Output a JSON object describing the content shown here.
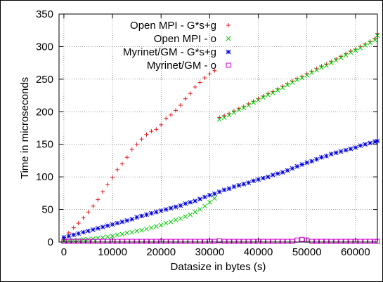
{
  "chart_data": {
    "type": "scatter",
    "title": "",
    "xlabel": "Datasize in bytes (s)",
    "ylabel": "Time in microseconds",
    "xlim": [
      -1000,
      64500
    ],
    "ylim": [
      0,
      350
    ],
    "x_ticks": [
      0,
      10000,
      20000,
      30000,
      40000,
      50000,
      60000
    ],
    "y_ticks": [
      0,
      50,
      100,
      150,
      200,
      250,
      300,
      350
    ],
    "grid": true,
    "legend_position": "top-left",
    "series": [
      {
        "name": "Open MPI - G*s+g",
        "color": "#e31a1c",
        "marker": "plus",
        "points": [
          [
            0,
            3
          ],
          [
            1000,
            14
          ],
          [
            2000,
            22
          ],
          [
            3000,
            29
          ],
          [
            4000,
            37
          ],
          [
            5000,
            46
          ],
          [
            6000,
            55
          ],
          [
            7000,
            65
          ],
          [
            8000,
            77
          ],
          [
            9000,
            88
          ],
          [
            10000,
            99
          ],
          [
            11000,
            111
          ],
          [
            12000,
            120
          ],
          [
            13000,
            130
          ],
          [
            14000,
            142
          ],
          [
            15000,
            150
          ],
          [
            16000,
            158
          ],
          [
            17000,
            165
          ],
          [
            18000,
            170
          ],
          [
            19000,
            173
          ],
          [
            20000,
            180
          ],
          [
            21000,
            190
          ],
          [
            22000,
            195
          ],
          [
            23000,
            202
          ],
          [
            24000,
            210
          ],
          [
            25000,
            220
          ],
          [
            26000,
            228
          ],
          [
            27000,
            238
          ],
          [
            28000,
            245
          ],
          [
            29000,
            252
          ],
          [
            30000,
            258
          ],
          [
            31000,
            263
          ],
          [
            32000,
            191
          ],
          [
            33000,
            194
          ],
          [
            34000,
            197
          ],
          [
            35000,
            201
          ],
          [
            36000,
            205
          ],
          [
            37000,
            208
          ],
          [
            38000,
            212
          ],
          [
            39000,
            216
          ],
          [
            40000,
            220
          ],
          [
            41000,
            224
          ],
          [
            42000,
            228
          ],
          [
            43000,
            231
          ],
          [
            44000,
            235
          ],
          [
            45000,
            239
          ],
          [
            46000,
            243
          ],
          [
            47000,
            247
          ],
          [
            48000,
            251
          ],
          [
            49000,
            254
          ],
          [
            50000,
            258
          ],
          [
            51000,
            262
          ],
          [
            52000,
            266
          ],
          [
            53000,
            270
          ],
          [
            54000,
            273
          ],
          [
            55000,
            277
          ],
          [
            56000,
            281
          ],
          [
            57000,
            285
          ],
          [
            58000,
            289
          ],
          [
            59000,
            293
          ],
          [
            60000,
            296
          ],
          [
            61000,
            300
          ],
          [
            62000,
            304
          ],
          [
            63000,
            308
          ],
          [
            64000,
            312
          ],
          [
            64500,
            320
          ]
        ]
      },
      {
        "name": "Open MPI - o",
        "color": "#00cc00",
        "marker": "cross",
        "points": [
          [
            0,
            2
          ],
          [
            1000,
            2
          ],
          [
            2000,
            3
          ],
          [
            3000,
            3
          ],
          [
            4000,
            4
          ],
          [
            5000,
            4
          ],
          [
            6000,
            5
          ],
          [
            7000,
            6
          ],
          [
            8000,
            7
          ],
          [
            9000,
            8
          ],
          [
            10000,
            9
          ],
          [
            11000,
            11
          ],
          [
            12000,
            12
          ],
          [
            13000,
            14
          ],
          [
            14000,
            15
          ],
          [
            15000,
            17
          ],
          [
            16000,
            18
          ],
          [
            17000,
            20
          ],
          [
            18000,
            22
          ],
          [
            19000,
            24
          ],
          [
            20000,
            26
          ],
          [
            21000,
            29
          ],
          [
            22000,
            31
          ],
          [
            23000,
            34
          ],
          [
            24000,
            36
          ],
          [
            25000,
            39
          ],
          [
            26000,
            42
          ],
          [
            27000,
            46
          ],
          [
            28000,
            50
          ],
          [
            29000,
            55
          ],
          [
            30000,
            61
          ],
          [
            31000,
            67
          ],
          [
            32000,
            188
          ],
          [
            33000,
            191
          ],
          [
            34000,
            195
          ],
          [
            35000,
            199
          ],
          [
            36000,
            203
          ],
          [
            37000,
            206
          ],
          [
            38000,
            210
          ],
          [
            39000,
            214
          ],
          [
            40000,
            218
          ],
          [
            41000,
            222
          ],
          [
            42000,
            226
          ],
          [
            43000,
            229
          ],
          [
            44000,
            233
          ],
          [
            45000,
            237
          ],
          [
            46000,
            241
          ],
          [
            47000,
            245
          ],
          [
            48000,
            249
          ],
          [
            49000,
            252
          ],
          [
            50000,
            256
          ],
          [
            51000,
            260
          ],
          [
            52000,
            264
          ],
          [
            53000,
            268
          ],
          [
            54000,
            271
          ],
          [
            55000,
            275
          ],
          [
            56000,
            279
          ],
          [
            57000,
            283
          ],
          [
            58000,
            287
          ],
          [
            59000,
            291
          ],
          [
            60000,
            294
          ],
          [
            61000,
            298
          ],
          [
            62000,
            302
          ],
          [
            63000,
            306
          ],
          [
            64000,
            310
          ],
          [
            64500,
            317
          ]
        ]
      },
      {
        "name": "Myrinet/GM - G*s+g",
        "color": "#0000dd",
        "marker": "star",
        "points": [
          [
            0,
            7
          ],
          [
            1000,
            9
          ],
          [
            2000,
            11
          ],
          [
            3000,
            13
          ],
          [
            4000,
            15
          ],
          [
            5000,
            17
          ],
          [
            6000,
            19
          ],
          [
            7000,
            21
          ],
          [
            8000,
            23
          ],
          [
            9000,
            25
          ],
          [
            10000,
            27
          ],
          [
            11000,
            29
          ],
          [
            12000,
            31
          ],
          [
            13000,
            33
          ],
          [
            14000,
            35
          ],
          [
            15000,
            38
          ],
          [
            16000,
            40
          ],
          [
            17000,
            42
          ],
          [
            18000,
            44
          ],
          [
            19000,
            46
          ],
          [
            20000,
            48
          ],
          [
            21000,
            50
          ],
          [
            22000,
            52
          ],
          [
            23000,
            54
          ],
          [
            24000,
            56
          ],
          [
            25000,
            59
          ],
          [
            26000,
            61
          ],
          [
            27000,
            63
          ],
          [
            28000,
            66
          ],
          [
            29000,
            69
          ],
          [
            30000,
            72
          ],
          [
            31000,
            74
          ],
          [
            32000,
            77
          ],
          [
            33000,
            80
          ],
          [
            34000,
            82
          ],
          [
            35000,
            85
          ],
          [
            36000,
            87
          ],
          [
            37000,
            89
          ],
          [
            38000,
            91
          ],
          [
            39000,
            94
          ],
          [
            40000,
            96
          ],
          [
            41000,
            98
          ],
          [
            42000,
            100
          ],
          [
            43000,
            103
          ],
          [
            44000,
            105
          ],
          [
            45000,
            107
          ],
          [
            46000,
            110
          ],
          [
            47000,
            113
          ],
          [
            48000,
            116
          ],
          [
            49000,
            119
          ],
          [
            50000,
            122
          ],
          [
            51000,
            124
          ],
          [
            52000,
            127
          ],
          [
            53000,
            130
          ],
          [
            54000,
            132
          ],
          [
            55000,
            135
          ],
          [
            56000,
            137
          ],
          [
            57000,
            139
          ],
          [
            58000,
            141
          ],
          [
            59000,
            143
          ],
          [
            60000,
            145
          ],
          [
            61000,
            148
          ],
          [
            62000,
            150
          ],
          [
            63000,
            152
          ],
          [
            64000,
            154
          ],
          [
            64500,
            155
          ]
        ]
      },
      {
        "name": "Myrinet/GM - o",
        "color": "#cc00cc",
        "marker": "square",
        "points": [
          [
            0,
            1
          ],
          [
            1000,
            1
          ],
          [
            2000,
            1
          ],
          [
            3000,
            1
          ],
          [
            4000,
            1
          ],
          [
            5000,
            1
          ],
          [
            6000,
            1
          ],
          [
            7000,
            1
          ],
          [
            8000,
            1
          ],
          [
            9000,
            1
          ],
          [
            10000,
            1
          ],
          [
            11000,
            1
          ],
          [
            12000,
            1
          ],
          [
            13000,
            1
          ],
          [
            14000,
            1
          ],
          [
            15000,
            1
          ],
          [
            16000,
            1
          ],
          [
            17000,
            1
          ],
          [
            18000,
            1
          ],
          [
            19000,
            1
          ],
          [
            20000,
            1
          ],
          [
            21000,
            1
          ],
          [
            22000,
            1
          ],
          [
            23000,
            1
          ],
          [
            24000,
            1
          ],
          [
            25000,
            1
          ],
          [
            26000,
            1
          ],
          [
            27000,
            1
          ],
          [
            28000,
            1
          ],
          [
            29000,
            1
          ],
          [
            30000,
            1
          ],
          [
            31000,
            1
          ],
          [
            32000,
            2
          ],
          [
            33000,
            1
          ],
          [
            34000,
            1
          ],
          [
            35000,
            1
          ],
          [
            36000,
            1
          ],
          [
            37000,
            1
          ],
          [
            38000,
            1
          ],
          [
            39000,
            1
          ],
          [
            40000,
            1
          ],
          [
            41000,
            1
          ],
          [
            42000,
            1
          ],
          [
            43000,
            1
          ],
          [
            44000,
            1
          ],
          [
            45000,
            1
          ],
          [
            46000,
            1
          ],
          [
            47000,
            1
          ],
          [
            48000,
            3
          ],
          [
            49000,
            4
          ],
          [
            50000,
            3
          ],
          [
            51000,
            1
          ],
          [
            52000,
            1
          ],
          [
            53000,
            1
          ],
          [
            54000,
            1
          ],
          [
            55000,
            1
          ],
          [
            56000,
            1
          ],
          [
            57000,
            1
          ],
          [
            58000,
            1
          ],
          [
            59000,
            1
          ],
          [
            60000,
            1
          ],
          [
            61000,
            1
          ],
          [
            62000,
            1
          ],
          [
            63000,
            1
          ],
          [
            64000,
            1
          ],
          [
            64500,
            1
          ]
        ]
      }
    ]
  }
}
